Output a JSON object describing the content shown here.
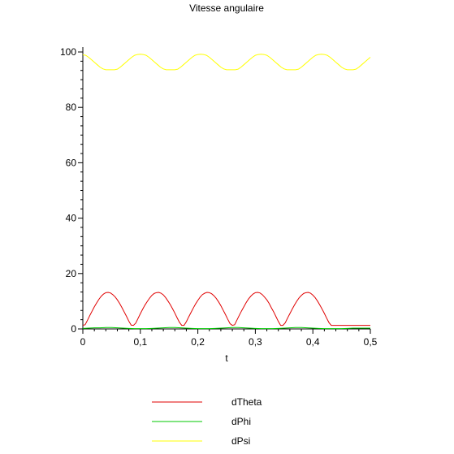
{
  "chart_data": {
    "type": "line",
    "title": "Vitesse angulaire",
    "xlabel": "t",
    "ylabel": "",
    "xlim": [
      0,
      0.5
    ],
    "ylim": [
      0,
      100
    ],
    "x_ticks": [
      0,
      0.1,
      0.2,
      0.3,
      0.4,
      0.5
    ],
    "x_tick_labels": [
      "0",
      "0,1",
      "0,2",
      "0,3",
      "0,4",
      "0,5"
    ],
    "y_ticks": [
      0,
      20,
      40,
      60,
      80,
      100
    ],
    "y_tick_labels": [
      "0",
      "20",
      "40",
      "60",
      "80",
      "100"
    ],
    "grid": false,
    "legend_position": "bottom",
    "series": [
      {
        "name": "dTheta",
        "color": "#e00000",
        "x": [
          0.0,
          0.004,
          0.008,
          0.012,
          0.016,
          0.02,
          0.024,
          0.028,
          0.032,
          0.036,
          0.04,
          0.044,
          0.048,
          0.052,
          0.056,
          0.06,
          0.064,
          0.068,
          0.072,
          0.076,
          0.08,
          0.084,
          0.088,
          0.092,
          0.096,
          0.1,
          0.104,
          0.108,
          0.112,
          0.116,
          0.12,
          0.124,
          0.128,
          0.132,
          0.136,
          0.14,
          0.144,
          0.148,
          0.152,
          0.156,
          0.16,
          0.164,
          0.168,
          0.172,
          0.176,
          0.18,
          0.184,
          0.188,
          0.192,
          0.196,
          0.2,
          0.204,
          0.208,
          0.212,
          0.216,
          0.22,
          0.224,
          0.228,
          0.232,
          0.236,
          0.24,
          0.244,
          0.248,
          0.252,
          0.256,
          0.26,
          0.264,
          0.268,
          0.272,
          0.276,
          0.28,
          0.284,
          0.288,
          0.292,
          0.296,
          0.3,
          0.304,
          0.308,
          0.312,
          0.316,
          0.32,
          0.324,
          0.328,
          0.332,
          0.336,
          0.34,
          0.344,
          0.348,
          0.352,
          0.356,
          0.36,
          0.364,
          0.368,
          0.372,
          0.376,
          0.38,
          0.384,
          0.388,
          0.392,
          0.396,
          0.4,
          0.404,
          0.408,
          0.412,
          0.416,
          0.42,
          0.424,
          0.428,
          0.432,
          0.436,
          0.44,
          0.444,
          0.448,
          0.452,
          0.456,
          0.46,
          0.464,
          0.468,
          0.472,
          0.476,
          0.48,
          0.484,
          0.488,
          0.492,
          0.496,
          0.5
        ],
        "y": [
          1.3,
          1.5,
          3.1,
          4.8,
          6.4,
          8.0,
          9.4,
          10.7,
          11.8,
          12.6,
          13.1,
          13.2,
          13.0,
          12.4,
          11.6,
          10.5,
          9.2,
          7.7,
          6.1,
          4.5,
          2.8,
          1.4,
          1.3,
          2.1,
          3.8,
          5.5,
          7.1,
          8.6,
          9.9,
          11.1,
          12.1,
          12.8,
          13.1,
          13.2,
          12.9,
          12.3,
          11.3,
          10.1,
          8.8,
          7.3,
          5.7,
          4.0,
          2.4,
          1.3,
          1.3,
          2.6,
          4.3,
          5.9,
          7.5,
          9.0,
          10.3,
          11.5,
          12.4,
          12.9,
          13.2,
          13.1,
          12.7,
          12.0,
          11.0,
          9.8,
          8.4,
          6.8,
          5.2,
          3.5,
          1.9,
          1.3,
          1.5,
          3.2,
          4.9,
          6.5,
          8.0,
          9.5,
          10.8,
          11.8,
          12.6,
          13.1,
          13.2,
          13.0,
          12.4,
          11.5,
          10.5,
          9.2,
          7.6,
          6.1,
          4.4,
          2.7,
          1.3,
          1.3,
          2.2,
          3.9,
          5.5,
          7.1,
          8.6,
          10.0,
          11.2,
          12.1,
          12.8,
          13.1,
          13.2,
          12.9,
          12.2,
          11.3,
          10.1,
          8.7,
          7.2,
          5.6,
          3.9,
          2.3,
          1.3,
          1.3,
          1.3,
          1.3,
          1.3,
          1.3,
          1.3,
          1.3,
          1.3,
          1.3,
          1.3,
          1.3,
          1.3,
          1.3,
          1.3,
          1.3,
          1.3,
          1.3
        ]
      },
      {
        "name": "dPhi",
        "color": "#00c800",
        "x": [
          0,
          0.01,
          0.02,
          0.03,
          0.04,
          0.05,
          0.06,
          0.07,
          0.08,
          0.09,
          0.1,
          0.11,
          0.12,
          0.13,
          0.14,
          0.15,
          0.16,
          0.17,
          0.18,
          0.19,
          0.2,
          0.21,
          0.22,
          0.23,
          0.24,
          0.25,
          0.26,
          0.27,
          0.28,
          0.29,
          0.3,
          0.31,
          0.32,
          0.33,
          0.34,
          0.35,
          0.36,
          0.37,
          0.38,
          0.39,
          0.4,
          0.41,
          0.42,
          0.43,
          0.44,
          0.45,
          0.46,
          0.47,
          0.48,
          0.49,
          0.5
        ],
        "y": [
          0.2,
          0.3,
          0.4,
          0.4,
          0.5,
          0.5,
          0.4,
          0.3,
          0.2,
          0.1,
          0.1,
          0.1,
          0.2,
          0.3,
          0.4,
          0.5,
          0.5,
          0.4,
          0.3,
          0.2,
          0.1,
          0.1,
          0.1,
          0.2,
          0.3,
          0.4,
          0.5,
          0.5,
          0.4,
          0.3,
          0.2,
          0.1,
          0.1,
          0.1,
          0.2,
          0.3,
          0.4,
          0.5,
          0.5,
          0.4,
          0.3,
          0.2,
          0.1,
          0.1,
          0.1,
          0.1,
          0.2,
          0.3,
          0.3,
          0.3,
          0.3
        ]
      },
      {
        "name": "dPsi",
        "color": "#ffff00",
        "x": [
          0.0,
          0.005,
          0.01,
          0.015,
          0.02,
          0.025,
          0.03,
          0.035,
          0.04,
          0.045,
          0.05,
          0.055,
          0.06,
          0.065,
          0.07,
          0.075,
          0.08,
          0.085,
          0.09,
          0.095,
          0.1,
          0.105,
          0.11,
          0.115,
          0.12,
          0.125,
          0.13,
          0.135,
          0.14,
          0.145,
          0.15,
          0.155,
          0.16,
          0.165,
          0.17,
          0.175,
          0.18,
          0.185,
          0.19,
          0.195,
          0.2,
          0.205,
          0.21,
          0.215,
          0.22,
          0.225,
          0.23,
          0.235,
          0.24,
          0.245,
          0.25,
          0.255,
          0.26,
          0.265,
          0.27,
          0.275,
          0.28,
          0.285,
          0.29,
          0.295,
          0.3,
          0.305,
          0.31,
          0.315,
          0.32,
          0.325,
          0.33,
          0.335,
          0.34,
          0.345,
          0.35,
          0.355,
          0.36,
          0.365,
          0.37,
          0.375,
          0.38,
          0.385,
          0.39,
          0.395,
          0.4,
          0.405,
          0.41,
          0.415,
          0.42,
          0.425,
          0.43,
          0.435,
          0.44,
          0.445,
          0.45,
          0.455,
          0.46,
          0.465,
          0.47,
          0.475,
          0.48,
          0.485,
          0.49,
          0.495,
          0.5
        ],
        "y": [
          99.0,
          98.8,
          98.1,
          97.2,
          96.3,
          95.4,
          94.5,
          93.9,
          93.6,
          93.6,
          93.6,
          93.6,
          93.8,
          94.5,
          95.4,
          96.3,
          97.2,
          98.1,
          98.8,
          99.1,
          99.2,
          99.1,
          98.8,
          98.1,
          97.2,
          96.3,
          95.4,
          94.5,
          93.9,
          93.6,
          93.6,
          93.6,
          93.6,
          93.8,
          94.5,
          95.4,
          96.3,
          97.2,
          98.1,
          98.8,
          99.1,
          99.2,
          99.1,
          98.8,
          98.1,
          97.2,
          96.3,
          95.4,
          94.5,
          93.9,
          93.6,
          93.6,
          93.6,
          93.6,
          93.8,
          94.5,
          95.4,
          96.3,
          97.2,
          98.1,
          98.8,
          99.1,
          99.2,
          99.1,
          98.8,
          98.1,
          97.2,
          96.3,
          95.4,
          94.5,
          93.9,
          93.6,
          93.6,
          93.6,
          93.6,
          93.8,
          94.5,
          95.4,
          96.3,
          97.2,
          98.1,
          98.8,
          99.1,
          99.2,
          99.1,
          98.8,
          98.1,
          97.2,
          96.3,
          95.4,
          94.5,
          93.9,
          93.6,
          93.6,
          93.6,
          93.8,
          94.5,
          95.4,
          96.3,
          97.2,
          98.1
        ]
      }
    ]
  }
}
